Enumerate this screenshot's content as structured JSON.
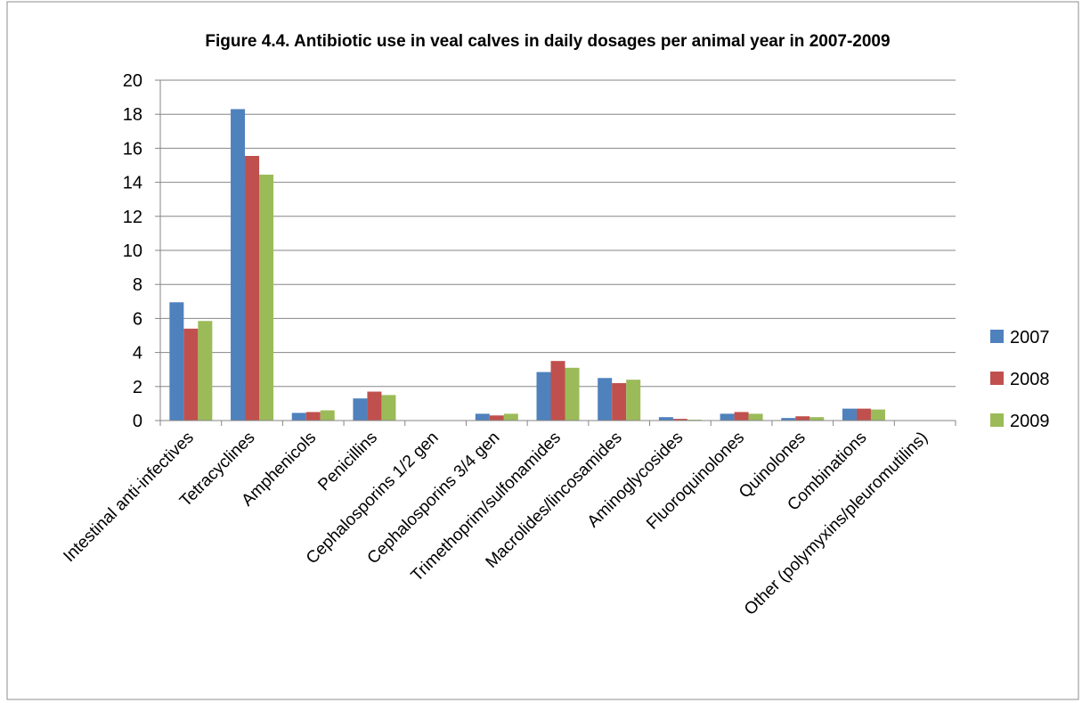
{
  "chart_data": {
    "type": "bar",
    "title": "Figure 4.4. Antibiotic use in veal calves in daily dosages per animal year in 2007-2009",
    "xlabel": "",
    "ylabel": "",
    "ylim": [
      0,
      20
    ],
    "yticks": [
      0,
      2,
      4,
      6,
      8,
      10,
      12,
      14,
      16,
      18,
      20
    ],
    "grid": true,
    "legend_position": "right",
    "categories": [
      "Intestinal anti-infectives",
      "Tetracyclines",
      "Amphenicols",
      "Penicillins",
      "Cephalosporins 1/2 gen",
      "Cephalosporins 3/4 gen",
      "Trimethoprim/sulfonamides",
      "Macrolides/lincosamides",
      "Aminoglycosides",
      "Fluoroquinolones",
      "Quinolones",
      "Combinations",
      "Other (polymyxins/pleuromutilins)"
    ],
    "series": [
      {
        "name": "2007",
        "color": "#4F81BD",
        "values": [
          6.95,
          18.3,
          0.45,
          1.3,
          0,
          0.4,
          2.85,
          2.5,
          0.2,
          0.4,
          0.15,
          0.7,
          0
        ]
      },
      {
        "name": "2008",
        "color": "#C0504D",
        "values": [
          5.4,
          15.55,
          0.5,
          1.7,
          0,
          0.3,
          3.5,
          2.2,
          0.1,
          0.5,
          0.25,
          0.7,
          0
        ]
      },
      {
        "name": "2009",
        "color": "#9BBB59",
        "values": [
          5.85,
          14.45,
          0.6,
          1.5,
          0,
          0.4,
          3.1,
          2.4,
          0.05,
          0.4,
          0.2,
          0.65,
          0
        ]
      }
    ]
  }
}
